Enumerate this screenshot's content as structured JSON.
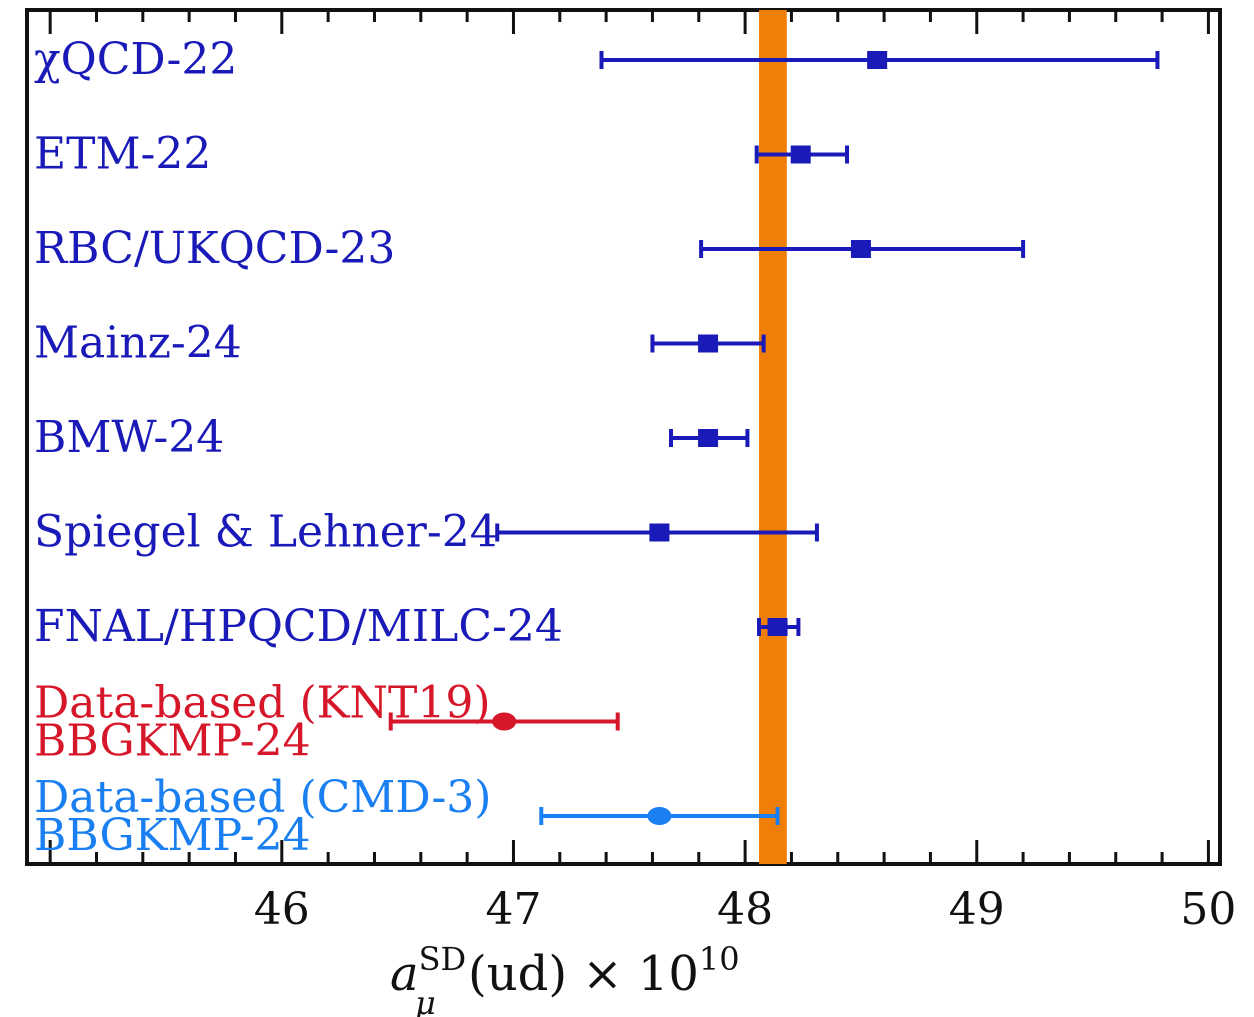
{
  "chart_data": {
    "type": "scatter",
    "subtype": "forest-plot-with-error-bars",
    "title": "",
    "xlabel": "a_μ^SD(ud) × 10^10",
    "xlabel_parts": {
      "base": "a",
      "subscript": "μ",
      "superscript": "SD",
      "rest": "(ud) × 10",
      "exponent": "10"
    },
    "xlim": [
      44.9,
      50.05
    ],
    "xticks": [
      46,
      47,
      48,
      49,
      50
    ],
    "grid": false,
    "legend": "none",
    "band": {
      "lo": 48.06,
      "hi": 48.18,
      "color": "#f07f09"
    },
    "entries": [
      {
        "lines": [
          "χQCD-22"
        ],
        "value": 48.57,
        "lo": 47.38,
        "hi": 49.78,
        "color": "#1a1ab8",
        "marker": "square"
      },
      {
        "lines": [
          "ETM-22"
        ],
        "value": 48.24,
        "lo": 48.05,
        "hi": 48.44,
        "color": "#1a1ab8",
        "marker": "square"
      },
      {
        "lines": [
          "RBC/UKQCD-23"
        ],
        "value": 48.5,
        "lo": 47.81,
        "hi": 49.2,
        "color": "#1a1ab8",
        "marker": "square"
      },
      {
        "lines": [
          "Mainz-24"
        ],
        "value": 47.84,
        "lo": 47.6,
        "hi": 48.08,
        "color": "#1a1ab8",
        "marker": "square"
      },
      {
        "lines": [
          "BMW-24"
        ],
        "value": 47.84,
        "lo": 47.68,
        "hi": 48.01,
        "color": "#1a1ab8",
        "marker": "square"
      },
      {
        "lines": [
          "Spiegel & Lehner-24"
        ],
        "value": 47.63,
        "lo": 46.93,
        "hi": 48.31,
        "color": "#1a1ab8",
        "marker": "square"
      },
      {
        "lines": [
          "FNAL/HPQCD/MILC-24"
        ],
        "value": 48.14,
        "lo": 48.06,
        "hi": 48.23,
        "color": "#1a1ab8",
        "marker": "square"
      },
      {
        "lines": [
          "Data-based (KNT19)",
          "BBGKMP-24"
        ],
        "value": 46.96,
        "lo": 46.47,
        "hi": 47.45,
        "color": "#d6172a",
        "marker": "circle"
      },
      {
        "lines": [
          "Data-based (CMD-3)",
          "BBGKMP-24"
        ],
        "value": 47.63,
        "lo": 47.12,
        "hi": 48.14,
        "color": "#1a7ff0",
        "marker": "circle"
      }
    ]
  }
}
